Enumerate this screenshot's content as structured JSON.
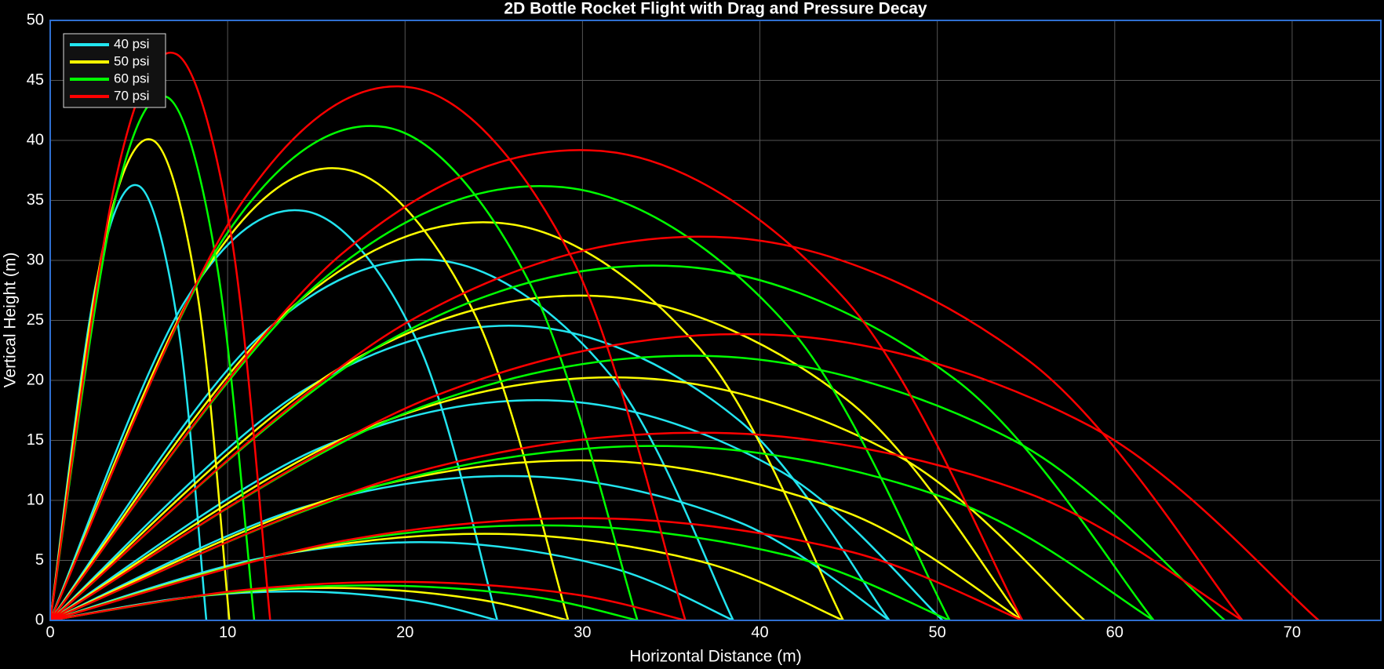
{
  "chart_data": {
    "type": "line",
    "title": "2D Bottle Rocket Flight with Drag and Pressure Decay",
    "x_label": "Horizontal Distance (m)",
    "y_label": "Vertical Height (m)",
    "xlim": [
      0,
      75
    ],
    "xticks": [
      0,
      10,
      20,
      30,
      40,
      50,
      60,
      70
    ],
    "ylim": [
      0,
      50
    ],
    "yticks": [
      0,
      5,
      10,
      15,
      20,
      25,
      30,
      35,
      40,
      45,
      50
    ],
    "grid": true,
    "legend": "upper-left",
    "series": [
      {
        "name": "40 psi",
        "color": "#22e5f0",
        "trajectories": [
          {
            "x": [
              0,
              2.6,
              5.0,
              7.2,
              8.8
            ],
            "y": [
              0,
              28.2,
              36.2,
              24.6,
              0
            ]
          },
          {
            "x": [
              0,
              7.6,
              14.4,
              20.7,
              25.2
            ],
            "y": [
              0,
              26.6,
              34.1,
              23.2,
              0
            ]
          },
          {
            "x": [
              0,
              11.6,
              21.9,
              31.6,
              38.5
            ],
            "y": [
              0,
              23.4,
              30.0,
              20.4,
              0
            ]
          },
          {
            "x": [
              0,
              14.2,
              27.0,
              38.8,
              47.3
            ],
            "y": [
              0,
              19.1,
              24.5,
              16.7,
              0
            ]
          },
          {
            "x": [
              0,
              15.1,
              28.7,
              41.2,
              50.3
            ],
            "y": [
              0,
              14.3,
              18.3,
              12.4,
              0
            ]
          },
          {
            "x": [
              0,
              14.2,
              27.0,
              38.8,
              47.3
            ],
            "y": [
              0,
              9.4,
              12.0,
              8.2,
              0
            ]
          },
          {
            "x": [
              0,
              11.6,
              21.9,
              31.6,
              38.5
            ],
            "y": [
              0,
              5.1,
              6.5,
              4.4,
              0
            ]
          },
          {
            "x": [
              0,
              7.6,
              14.4,
              20.7,
              25.2
            ],
            "y": [
              0,
              1.9,
              2.4,
              1.6,
              0
            ]
          }
        ]
      },
      {
        "name": "50 psi",
        "color": "#ffff00",
        "trajectories": [
          {
            "x": [
              0,
              3.0,
              5.8,
              8.3,
              10.1
            ],
            "y": [
              0,
              31.2,
              40.0,
              27.2,
              0
            ]
          },
          {
            "x": [
              0,
              8.8,
              16.6,
              23.9,
              29.2
            ],
            "y": [
              0,
              29.3,
              37.6,
              25.6,
              0
            ]
          },
          {
            "x": [
              0,
              13.4,
              25.5,
              36.7,
              44.7
            ],
            "y": [
              0,
              25.8,
              33.1,
              22.5,
              0
            ]
          },
          {
            "x": [
              0,
              16.4,
              31.2,
              44.9,
              54.8
            ],
            "y": [
              0,
              21.1,
              27.0,
              18.4,
              0
            ]
          },
          {
            "x": [
              0,
              17.5,
              33.2,
              47.8,
              58.3
            ],
            "y": [
              0,
              15.8,
              20.2,
              13.7,
              0
            ]
          },
          {
            "x": [
              0,
              16.4,
              31.2,
              44.9,
              54.8
            ],
            "y": [
              0,
              10.4,
              13.3,
              9.0,
              0
            ]
          },
          {
            "x": [
              0,
              13.4,
              25.5,
              36.7,
              44.7
            ],
            "y": [
              0,
              5.6,
              7.2,
              4.9,
              0
            ]
          },
          {
            "x": [
              0,
              8.8,
              16.6,
              23.9,
              29.2
            ],
            "y": [
              0,
              2.1,
              2.7,
              1.8,
              0
            ]
          }
        ]
      },
      {
        "name": "60 psi",
        "color": "#00ff00",
        "trajectories": [
          {
            "x": [
              0,
              3.5,
              6.6,
              9.4,
              11.5
            ],
            "y": [
              0,
              34.0,
              43.6,
              29.6,
              0
            ]
          },
          {
            "x": [
              0,
              9.9,
              18.9,
              27.1,
              33.1
            ],
            "y": [
              0,
              32.1,
              41.1,
              27.9,
              0
            ]
          },
          {
            "x": [
              0,
              15.2,
              28.9,
              41.6,
              50.7
            ],
            "y": [
              0,
              28.2,
              36.1,
              24.5,
              0
            ]
          },
          {
            "x": [
              0,
              18.7,
              35.5,
              51.0,
              62.2
            ],
            "y": [
              0,
              23.0,
              29.5,
              20.1,
              0
            ]
          },
          {
            "x": [
              0,
              19.9,
              37.7,
              54.3,
              66.2
            ],
            "y": [
              0,
              17.2,
              22.0,
              15.0,
              0
            ]
          },
          {
            "x": [
              0,
              18.7,
              35.5,
              51.0,
              62.2
            ],
            "y": [
              0,
              11.3,
              14.5,
              9.9,
              0
            ]
          },
          {
            "x": [
              0,
              15.2,
              28.9,
              41.6,
              50.7
            ],
            "y": [
              0,
              6.2,
              7.9,
              5.4,
              0
            ]
          },
          {
            "x": [
              0,
              9.9,
              18.9,
              27.1,
              33.1
            ],
            "y": [
              0,
              2.3,
              2.9,
              2.0,
              0
            ]
          }
        ]
      },
      {
        "name": "70 psi",
        "color": "#ff0000",
        "trajectories": [
          {
            "x": [
              0,
              3.7,
              7.1,
              10.2,
              12.4
            ],
            "y": [
              0,
              36.8,
              47.2,
              32.1,
              0
            ]
          },
          {
            "x": [
              0,
              10.7,
              20.4,
              29.4,
              35.8
            ],
            "y": [
              0,
              34.6,
              44.4,
              30.2,
              0
            ]
          },
          {
            "x": [
              0,
              16.4,
              31.2,
              44.9,
              54.8
            ],
            "y": [
              0,
              30.5,
              39.1,
              26.6,
              0
            ]
          },
          {
            "x": [
              0,
              20.2,
              38.3,
              55.1,
              67.2
            ],
            "y": [
              0,
              24.9,
              31.9,
              21.7,
              0
            ]
          },
          {
            "x": [
              0,
              21.5,
              40.8,
              58.6,
              71.5
            ],
            "y": [
              0,
              18.6,
              23.8,
              16.2,
              0
            ]
          },
          {
            "x": [
              0,
              20.2,
              38.3,
              55.1,
              67.2
            ],
            "y": [
              0,
              12.2,
              15.6,
              10.6,
              0
            ]
          },
          {
            "x": [
              0,
              16.4,
              31.2,
              44.9,
              54.8
            ],
            "y": [
              0,
              6.6,
              8.5,
              5.8,
              0
            ]
          },
          {
            "x": [
              0,
              10.7,
              20.4,
              29.4,
              35.8
            ],
            "y": [
              0,
              2.5,
              3.2,
              2.2,
              0
            ]
          }
        ]
      }
    ]
  }
}
